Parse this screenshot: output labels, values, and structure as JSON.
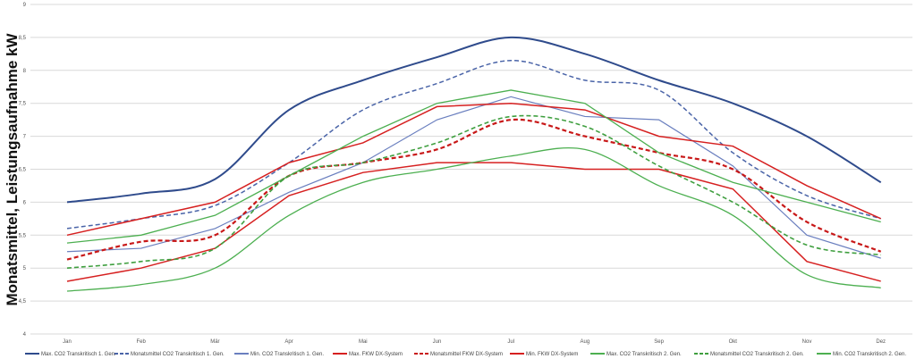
{
  "chart_data": {
    "type": "line",
    "title": "",
    "xlabel": "",
    "ylabel": "Monatsmittel, Leistungsaufnahme kW",
    "ylim": [
      4,
      9
    ],
    "yticks": [
      "4",
      "4,5",
      "5",
      "5,5",
      "6",
      "6,5",
      "7",
      "7,5",
      "8",
      "8,5",
      "9"
    ],
    "ytick_values": [
      4,
      4.5,
      5,
      5.5,
      6,
      6.5,
      7,
      7.5,
      8,
      8.5,
      9
    ],
    "grid": true,
    "legend_position": "bottom",
    "categories": [
      "Jan",
      "Feb",
      "Mär",
      "Apr",
      "Mai",
      "Jun",
      "Jul",
      "Aug",
      "Sep",
      "Okt",
      "Nov",
      "Dez"
    ],
    "series": [
      {
        "name": "Max. CO2 Transkritisch 1. Gen.",
        "color": "#2f4b8c",
        "dash": false,
        "width": 2,
        "smooth": true,
        "values": [
          6.0,
          6.13,
          6.35,
          7.4,
          7.85,
          8.2,
          8.5,
          8.25,
          7.85,
          7.5,
          7.0,
          6.3
        ]
      },
      {
        "name": "Monatsmittel CO2 Transkritisch 1. Gen.",
        "color": "#4a64a8",
        "dash": true,
        "width": 1.5,
        "smooth": true,
        "values": [
          5.6,
          5.75,
          5.95,
          6.6,
          7.4,
          7.8,
          8.15,
          7.85,
          7.7,
          6.75,
          6.1,
          5.75
        ]
      },
      {
        "name": "Min. CO2 Transkritisch 1. Gen.",
        "color": "#6a7fbf",
        "dash": false,
        "width": 1.2,
        "smooth": false,
        "values": [
          5.25,
          5.3,
          5.6,
          6.15,
          6.6,
          7.25,
          7.6,
          7.3,
          7.25,
          6.55,
          5.5,
          5.15
        ]
      },
      {
        "name": "Max. FKW DX-System",
        "color": "#d62020",
        "dash": false,
        "width": 1.5,
        "smooth": false,
        "values": [
          5.5,
          5.75,
          6.0,
          6.6,
          6.9,
          7.45,
          7.5,
          7.4,
          7.0,
          6.85,
          6.25,
          5.75
        ]
      },
      {
        "name": "Monatsmittel FKW DX-System",
        "color": "#c81818",
        "dash": true,
        "width": 2.2,
        "smooth": true,
        "values": [
          5.13,
          5.4,
          5.5,
          6.4,
          6.6,
          6.8,
          7.25,
          7.0,
          6.75,
          6.5,
          5.7,
          5.25
        ]
      },
      {
        "name": "Min. FKW DX-System",
        "color": "#d62020",
        "dash": false,
        "width": 1.5,
        "smooth": false,
        "values": [
          4.8,
          5.0,
          5.3,
          6.1,
          6.45,
          6.6,
          6.6,
          6.5,
          6.5,
          6.2,
          5.1,
          4.8
        ]
      },
      {
        "name": "Max. CO2 Transkritisch 2. Gen.",
        "color": "#4caf50",
        "dash": false,
        "width": 1.3,
        "smooth": false,
        "values": [
          5.38,
          5.5,
          5.8,
          6.4,
          7.0,
          7.5,
          7.7,
          7.5,
          6.75,
          6.3,
          6.0,
          5.7
        ]
      },
      {
        "name": "Monatsmittel CO2 Transkritisch 2. Gen.",
        "color": "#3f9f3f",
        "dash": true,
        "width": 1.6,
        "smooth": true,
        "values": [
          5.0,
          5.1,
          5.3,
          6.4,
          6.6,
          6.9,
          7.3,
          7.15,
          6.55,
          6.0,
          5.35,
          5.2
        ]
      },
      {
        "name": "Min. CO2 Transkritisch 2. Gen.",
        "color": "#4caf50",
        "dash": false,
        "width": 1.3,
        "smooth": true,
        "values": [
          4.65,
          4.75,
          5.0,
          5.8,
          6.3,
          6.5,
          6.7,
          6.8,
          6.25,
          5.8,
          4.9,
          4.7
        ]
      }
    ]
  }
}
